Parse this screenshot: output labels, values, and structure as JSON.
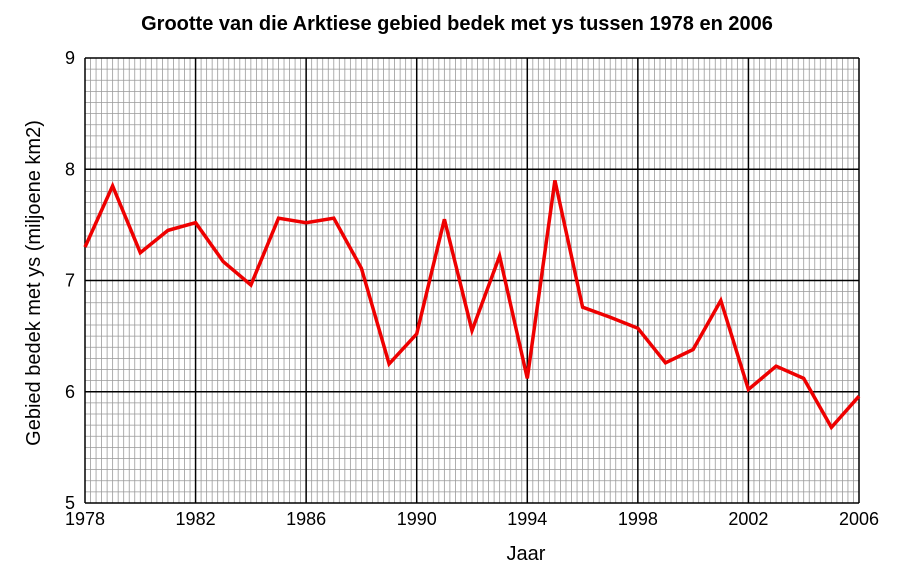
{
  "chart_data": {
    "type": "line",
    "title": "Grootte van die Arktiese gebied bedek met ys tussen 1978 en 2006",
    "xlabel": "Jaar",
    "ylabel": "Gebied bedek met ys (miljoene km2)",
    "xlim": [
      1978,
      2006
    ],
    "ylim": [
      5,
      9
    ],
    "x_ticks": [
      1978,
      1982,
      1986,
      1990,
      1994,
      1998,
      2002,
      2006
    ],
    "y_ticks": [
      5,
      6,
      7,
      8,
      9
    ],
    "grid": true,
    "line_color": "#ee0000",
    "x": [
      1978,
      1979,
      1980,
      1981,
      1982,
      1983,
      1984,
      1985,
      1986,
      1987,
      1988,
      1989,
      1990,
      1991,
      1992,
      1993,
      1994,
      1995,
      1996,
      1997,
      1998,
      1999,
      2000,
      2001,
      2002,
      2003,
      2004,
      2005,
      2006
    ],
    "y": [
      7.3,
      7.85,
      7.25,
      7.45,
      7.52,
      7.17,
      6.96,
      7.56,
      7.52,
      7.56,
      7.11,
      6.25,
      6.52,
      7.55,
      6.55,
      7.22,
      6.12,
      7.9,
      6.76,
      6.67,
      6.57,
      6.26,
      6.38,
      6.82,
      6.02,
      6.23,
      6.12,
      5.68,
      5.96
    ]
  }
}
